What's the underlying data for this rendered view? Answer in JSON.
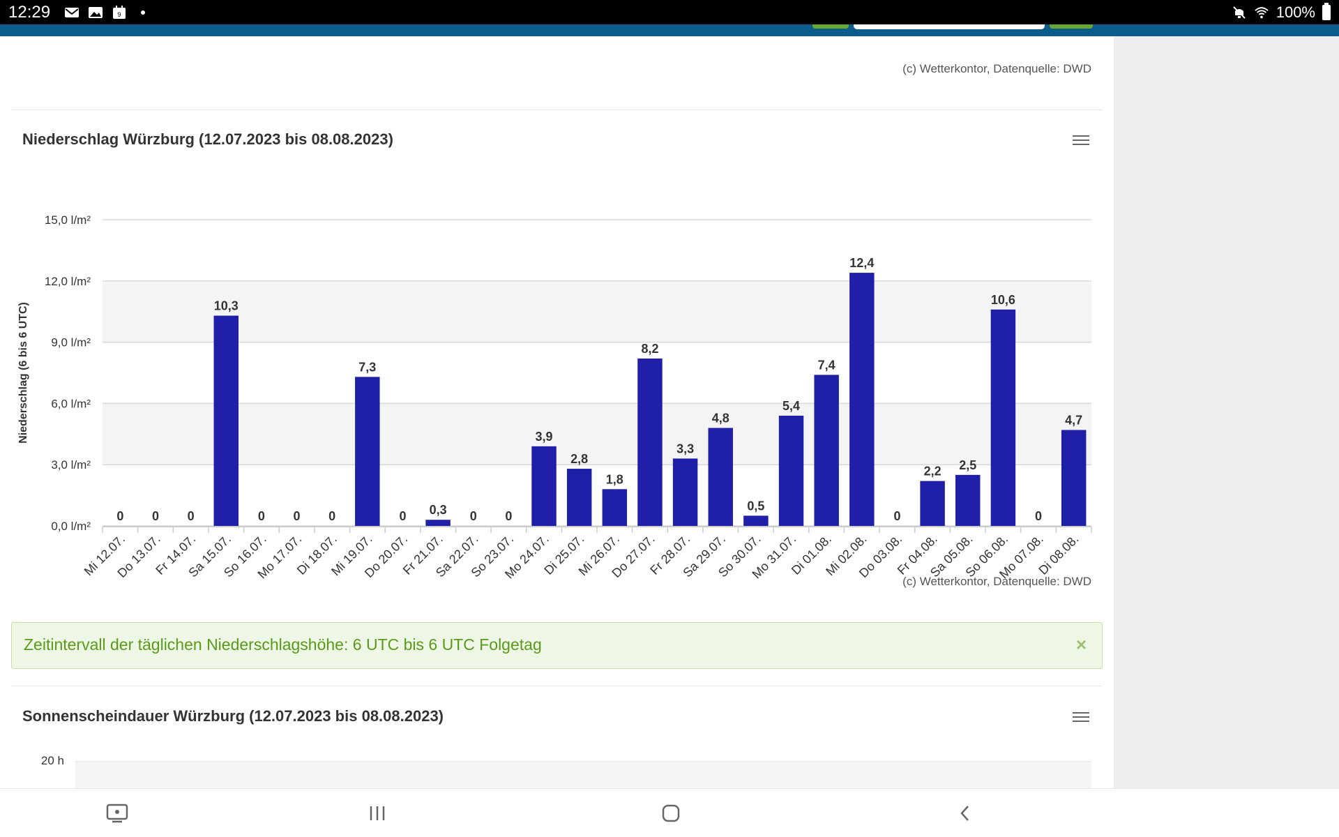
{
  "status_bar": {
    "time": "12:29",
    "left_icons": [
      "mail-icon",
      "image-icon",
      "calendar-icon",
      "dot-icon"
    ],
    "calendar_day": "9",
    "battery": "100%"
  },
  "credit_text": "(c) Wetterkontor, Datenquelle: DWD",
  "chart1": {
    "title": "Niederschlag Würzburg (12.07.2023 bis 08.08.2023)"
  },
  "chart_data": [
    {
      "type": "bar",
      "title": "Niederschlag Würzburg (12.07.2023 bis 08.08.2023)",
      "xlabel": "",
      "ylabel": "Niederschlag (6 bis 6 UTC)",
      "ylim": [
        0,
        15
      ],
      "yticks": [
        0,
        3,
        6,
        9,
        12,
        15
      ],
      "ytick_labels": [
        "0,0 l/m²",
        "3,0 l/m²",
        "6,0 l/m²",
        "9,0 l/m²",
        "12,0 l/m²",
        "15,0 l/m²"
      ],
      "categories": [
        "Mi 12.07.",
        "Do 13.07.",
        "Fr 14.07.",
        "Sa 15.07.",
        "So 16.07.",
        "Mo 17.07.",
        "Di 18.07.",
        "Mi 19.07.",
        "Do 20.07.",
        "Fr 21.07.",
        "Sa 22.07.",
        "So 23.07.",
        "Mo 24.07.",
        "Di 25.07.",
        "Mi 26.07.",
        "Do 27.07.",
        "Fr 28.07.",
        "Sa 29.07.",
        "So 30.07.",
        "Mo 31.07.",
        "Di 01.08.",
        "Mi 02.08.",
        "Do 03.08.",
        "Fr 04.08.",
        "Sa 05.08.",
        "So 06.08.",
        "Mo 07.08.",
        "Di 08.08."
      ],
      "values": [
        0,
        0,
        0,
        10.3,
        0,
        0,
        0,
        7.3,
        0,
        0.3,
        0,
        0,
        3.9,
        2.8,
        1.8,
        8.2,
        3.3,
        4.8,
        0.5,
        5.4,
        7.4,
        12.4,
        0,
        2.2,
        2.5,
        10.6,
        0,
        4.7
      ],
      "value_labels": [
        "0",
        "0",
        "0",
        "10,3",
        "0",
        "0",
        "0",
        "7,3",
        "0",
        "0,3",
        "0",
        "0",
        "3,9",
        "2,8",
        "1,8",
        "8,2",
        "3,3",
        "4,8",
        "0,5",
        "5,4",
        "7,4",
        "12,4",
        "0",
        "2,2",
        "2,5",
        "10,6",
        "0",
        "4,7"
      ],
      "bar_color": "#1f1fa8",
      "grid": true
    },
    {
      "type": "bar",
      "title": "Sonnenscheindauer Würzburg (12.07.2023 bis 08.08.2023)",
      "ytick_labels_visible": [
        "20 h"
      ],
      "ylim_top": 20,
      "note": ""
    }
  ],
  "info": {
    "text": "Zeitintervall der täglichen Niederschlagshöhe: 6 UTC bis 6 UTC Folgetag",
    "close": "×"
  },
  "chart2": {
    "title": "Sonnenscheindauer Würzburg (12.07.2023 bis 08.08.2023)",
    "top_tick": "20 h"
  },
  "nav_bar": {
    "buttons": [
      "screen-icon",
      "recent-apps-icon",
      "home-icon",
      "back-icon"
    ]
  }
}
